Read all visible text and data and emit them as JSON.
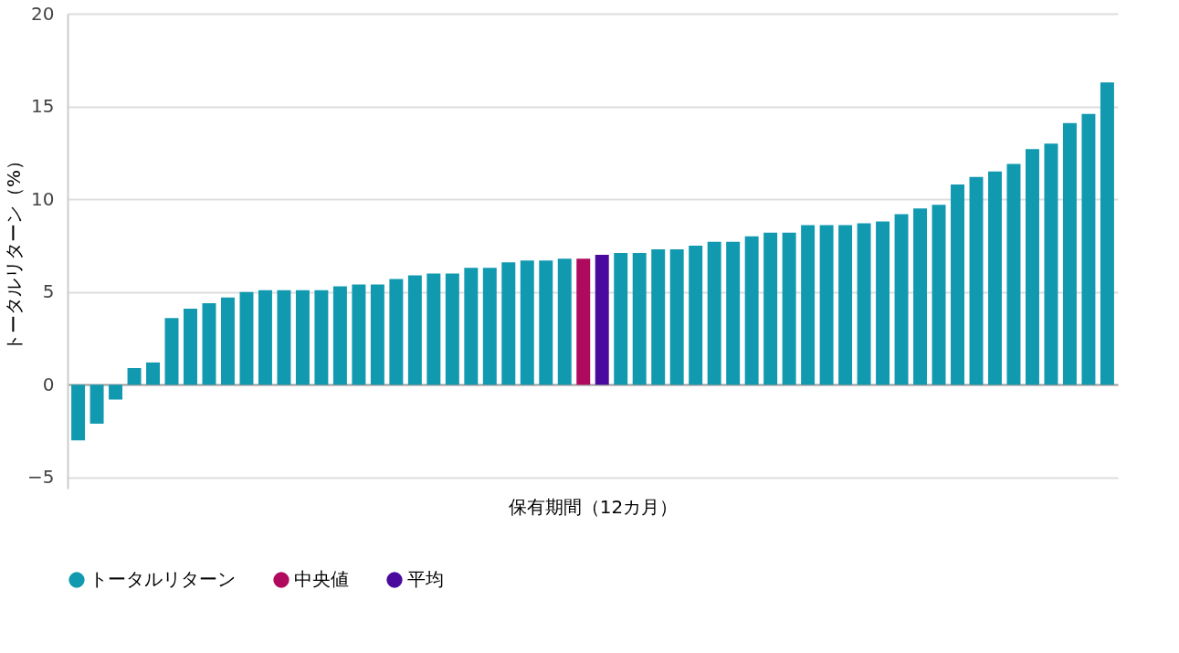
{
  "chart_data": {
    "type": "bar",
    "xlabel": "保有期間（12カ月）",
    "ylabel": "トータルリターン（%）",
    "categories": [
      null,
      null,
      null,
      null,
      null,
      null,
      null,
      null,
      null,
      null,
      null,
      null,
      null,
      null,
      null,
      null,
      null,
      null,
      null,
      null,
      null,
      null,
      null,
      null,
      null,
      null,
      null,
      null,
      null,
      null,
      null,
      null,
      null,
      null,
      null,
      null,
      null,
      null,
      null,
      null,
      null,
      null,
      null,
      null,
      null,
      null,
      null,
      null,
      null,
      null,
      null,
      null,
      null,
      null,
      null,
      null
    ],
    "series": [
      {
        "name": "トータルリターン",
        "color": "#1199b0",
        "values": [
          -3.0,
          -2.1,
          -0.8,
          0.9,
          1.2,
          3.6,
          4.1,
          4.4,
          4.7,
          5.0,
          5.1,
          5.1,
          5.1,
          5.1,
          5.3,
          5.4,
          5.4,
          5.7,
          5.9,
          6.0,
          6.0,
          6.3,
          6.3,
          6.6,
          6.7,
          6.7,
          6.8,
          null,
          null,
          7.1,
          7.1,
          7.3,
          7.3,
          7.5,
          7.7,
          7.7,
          8.0,
          8.2,
          8.2,
          8.6,
          8.6,
          8.6,
          8.7,
          8.8,
          9.2,
          9.5,
          9.7,
          10.8,
          11.2,
          11.5,
          11.9,
          12.7,
          13.0,
          14.1,
          14.6,
          16.3
        ]
      },
      {
        "name": "中央値",
        "color": "#b00a5e",
        "values": [
          null,
          null,
          null,
          null,
          null,
          null,
          null,
          null,
          null,
          null,
          null,
          null,
          null,
          null,
          null,
          null,
          null,
          null,
          null,
          null,
          null,
          null,
          null,
          null,
          null,
          null,
          null,
          6.8,
          null,
          null,
          null,
          null,
          null,
          null,
          null,
          null,
          null,
          null,
          null,
          null,
          null,
          null,
          null,
          null,
          null,
          null,
          null,
          null,
          null,
          null,
          null,
          null,
          null,
          null,
          null,
          null
        ]
      },
      {
        "name": "平均",
        "color": "#4b0a9e",
        "values": [
          null,
          null,
          null,
          null,
          null,
          null,
          null,
          null,
          null,
          null,
          null,
          null,
          null,
          null,
          null,
          null,
          null,
          null,
          null,
          null,
          null,
          null,
          null,
          null,
          null,
          null,
          null,
          null,
          7.0,
          null,
          null,
          null,
          null,
          null,
          null,
          null,
          null,
          null,
          null,
          null,
          null,
          null,
          null,
          null,
          null,
          null,
          null,
          null,
          null,
          null,
          null,
          null,
          null,
          null,
          null,
          null
        ]
      }
    ],
    "ylim": [
      -5.6,
      20
    ],
    "yticks": [
      -5,
      0,
      5,
      10,
      15,
      20
    ],
    "grid": "y",
    "legend": "bottom",
    "tick_labels": "y"
  }
}
